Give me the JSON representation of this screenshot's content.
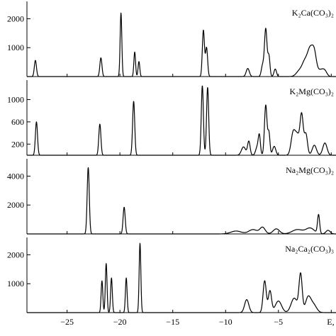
{
  "chart_data": [
    {
      "type": "line",
      "panel_label": "K₂Ca(CO₃)₂",
      "xlim": [
        -30,
        0
      ],
      "ylim": [
        0,
        2600
      ],
      "yticks": [
        1000,
        2000
      ],
      "ytick_labels": [
        "1000",
        "2000"
      ],
      "peaks": [
        [
          -28.0,
          560,
          0.1
        ],
        [
          -21.8,
          650,
          0.1
        ],
        [
          -19.9,
          2200,
          0.08
        ],
        [
          -18.6,
          850,
          0.08
        ],
        [
          -18.2,
          520,
          0.08
        ],
        [
          -12.1,
          1600,
          0.1
        ],
        [
          -11.8,
          1000,
          0.1
        ],
        [
          -7.9,
          280,
          0.15
        ],
        [
          -6.5,
          380,
          0.12
        ],
        [
          -6.2,
          1650,
          0.12
        ],
        [
          -5.9,
          700,
          0.1
        ],
        [
          -5.3,
          260,
          0.12
        ],
        [
          -3.0,
          200,
          0.3
        ],
        [
          -2.5,
          450,
          0.25
        ],
        [
          -2.0,
          900,
          0.25
        ],
        [
          -1.6,
          700,
          0.2
        ],
        [
          -1.0,
          230,
          0.3
        ],
        [
          -0.6,
          140,
          0.2
        ]
      ]
    },
    {
      "type": "line",
      "panel_label": "K₂Mg(CO₃)₂",
      "xlim": [
        -30,
        0
      ],
      "ylim": [
        0,
        1350
      ],
      "yticks": [
        200,
        600,
        1000
      ],
      "ytick_labels": [
        "200",
        "600",
        "1000"
      ],
      "peaks": [
        [
          -27.9,
          600,
          0.1
        ],
        [
          -21.9,
          560,
          0.1
        ],
        [
          -18.7,
          970,
          0.1
        ],
        [
          -12.2,
          1250,
          0.1
        ],
        [
          -11.7,
          1220,
          0.1
        ],
        [
          -8.3,
          150,
          0.2
        ],
        [
          -7.8,
          250,
          0.12
        ],
        [
          -7.0,
          150,
          0.15
        ],
        [
          -6.8,
          320,
          0.1
        ],
        [
          -6.2,
          900,
          0.12
        ],
        [
          -5.9,
          400,
          0.1
        ],
        [
          -5.4,
          160,
          0.15
        ],
        [
          -3.6,
          400,
          0.2
        ],
        [
          -3.2,
          330,
          0.2
        ],
        [
          -2.8,
          710,
          0.15
        ],
        [
          -2.4,
          380,
          0.15
        ],
        [
          -1.6,
          180,
          0.2
        ],
        [
          -0.6,
          220,
          0.2
        ]
      ]
    },
    {
      "type": "line",
      "panel_label": "Na₂Mg(CO₃)₂",
      "xlim": [
        -30,
        0
      ],
      "ylim": [
        0,
        5200
      ],
      "yticks": [
        2000,
        4000
      ],
      "ytick_labels": [
        "2000",
        "4000"
      ],
      "peaks": [
        [
          -23.0,
          4600,
          0.1
        ],
        [
          -19.6,
          1850,
          0.1
        ],
        [
          -9.0,
          200,
          0.5
        ],
        [
          -7.4,
          300,
          0.4
        ],
        [
          -6.5,
          450,
          0.25
        ],
        [
          -5.2,
          350,
          0.3
        ],
        [
          -3.2,
          300,
          0.5
        ],
        [
          -2.0,
          400,
          0.4
        ],
        [
          -1.2,
          1300,
          0.1
        ],
        [
          -0.3,
          250,
          0.2
        ]
      ]
    },
    {
      "type": "line",
      "panel_label": "Na₂Ca₂(CO₃)₃",
      "xlim": [
        -30,
        0
      ],
      "ylim": [
        0,
        2600
      ],
      "yticks": [
        1000,
        2000
      ],
      "ytick_labels": [
        "1000",
        "2000"
      ],
      "peaks": [
        [
          -21.7,
          1100,
          0.08
        ],
        [
          -21.3,
          1700,
          0.08
        ],
        [
          -20.8,
          1200,
          0.08
        ],
        [
          -19.4,
          1200,
          0.08
        ],
        [
          -18.1,
          2400,
          0.08
        ],
        [
          -8.0,
          450,
          0.2
        ],
        [
          -6.3,
          1100,
          0.15
        ],
        [
          -5.8,
          750,
          0.15
        ],
        [
          -5.0,
          400,
          0.3
        ],
        [
          -3.5,
          500,
          0.3
        ],
        [
          -2.9,
          1300,
          0.15
        ],
        [
          -2.2,
          500,
          0.25
        ],
        [
          -1.7,
          280,
          0.3
        ]
      ]
    }
  ],
  "x_axis": {
    "ticks": [
      -25,
      -20,
      -15,
      -10,
      -5,
      0
    ],
    "tick_labels": [
      "−25",
      "−20",
      "−15",
      "−10",
      "−5",
      "E,"
    ]
  }
}
